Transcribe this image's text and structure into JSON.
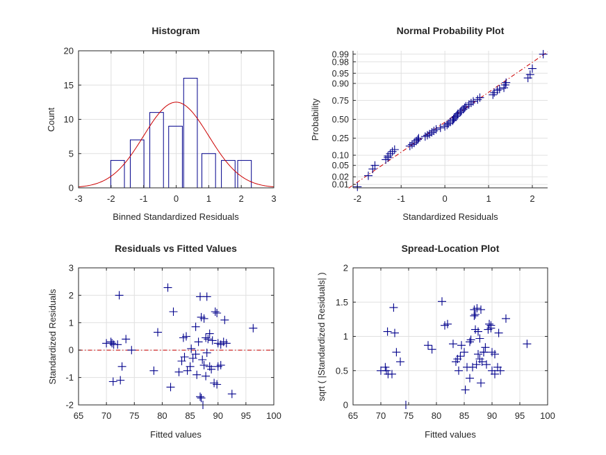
{
  "chart_data": [
    {
      "type": "bar",
      "title": "Histogram",
      "xlabel": "Binned Standardized Residuals",
      "ylabel": "Count",
      "xlim": [
        -3,
        3
      ],
      "ylim": [
        0,
        20
      ],
      "xticks": [
        -3,
        -2,
        -1,
        0,
        1,
        2,
        3
      ],
      "yticks": [
        0,
        5,
        10,
        15,
        20
      ],
      "grid": true,
      "bins": [
        {
          "center": -1.8,
          "value": 4
        },
        {
          "center": -1.2,
          "value": 7
        },
        {
          "center": -0.6,
          "value": 11
        },
        {
          "center": -0.02,
          "value": 9
        },
        {
          "center": 0.44,
          "value": 16
        },
        {
          "center": 1.0,
          "value": 5
        },
        {
          "center": 1.6,
          "value": 4
        },
        {
          "center": 2.1,
          "value": 4
        }
      ],
      "bar_width": 0.42,
      "fit_curve": {
        "mean": 0.0,
        "sd": 1.0,
        "peak": 12.5
      },
      "colors": {
        "bars": "#00008b",
        "curve": "#cc0000"
      }
    },
    {
      "type": "scatter",
      "title": "Normal Probability Plot",
      "xlabel": "Standardized Residuals",
      "ylabel": "Probability",
      "xlim": [
        -2.1,
        2.35
      ],
      "xticks": [
        -2,
        -1,
        0,
        1,
        2
      ],
      "yticks": [
        "0.01",
        "0.02",
        "0.05",
        "0.10",
        "0.25",
        "0.50",
        "0.75",
        "0.90",
        "0.95",
        "0.98",
        "0.99"
      ],
      "ytick_values": [
        0.01,
        0.02,
        0.05,
        0.1,
        0.25,
        0.5,
        0.75,
        0.9,
        0.95,
        0.98,
        0.99
      ],
      "scale": "normal-probability",
      "grid": true,
      "reference_line": {
        "x": [
          -2.2,
          2.35
        ],
        "p": [
          0.007,
          0.992
        ]
      },
      "x": [
        -2.0,
        -1.75,
        -1.65,
        -1.6,
        -1.35,
        -1.3,
        -1.3,
        -1.25,
        -1.2,
        -1.15,
        -0.8,
        -0.75,
        -0.7,
        -0.65,
        -0.62,
        -0.6,
        -0.45,
        -0.4,
        -0.35,
        -0.3,
        -0.25,
        -0.2,
        -0.1,
        0.0,
        0.05,
        0.08,
        0.12,
        0.18,
        0.2,
        0.22,
        0.25,
        0.28,
        0.3,
        0.35,
        0.38,
        0.42,
        0.45,
        0.48,
        0.55,
        0.6,
        0.65,
        0.75,
        0.8,
        1.1,
        1.13,
        1.2,
        1.25,
        1.35,
        1.38,
        1.4,
        1.9,
        1.95,
        2.0,
        2.25
      ],
      "p": [
        0.008,
        0.022,
        0.038,
        0.05,
        0.075,
        0.085,
        0.095,
        0.11,
        0.125,
        0.14,
        0.17,
        0.185,
        0.2,
        0.22,
        0.235,
        0.25,
        0.27,
        0.285,
        0.3,
        0.32,
        0.34,
        0.36,
        0.38,
        0.4,
        0.42,
        0.44,
        0.46,
        0.48,
        0.5,
        0.52,
        0.54,
        0.56,
        0.58,
        0.6,
        0.62,
        0.64,
        0.66,
        0.68,
        0.7,
        0.72,
        0.74,
        0.76,
        0.78,
        0.81,
        0.83,
        0.85,
        0.86,
        0.87,
        0.89,
        0.905,
        0.93,
        0.945,
        0.965,
        0.99
      ],
      "colors": {
        "points": "#00008b",
        "line": "#cc0000"
      }
    },
    {
      "type": "scatter",
      "title": "Residuals vs Fitted Values",
      "xlabel": "Fitted values",
      "ylabel": "Standardized Residuals",
      "xlim": [
        65,
        100
      ],
      "ylim": [
        -2,
        3
      ],
      "xticks": [
        65,
        70,
        75,
        80,
        85,
        90,
        95,
        100
      ],
      "yticks": [
        -2,
        -1,
        0,
        1,
        2,
        3
      ],
      "grid": true,
      "reference_line": {
        "y": 0
      },
      "x": [
        72.3,
        81.0,
        86.8,
        88.0,
        82.0,
        89.5,
        89.8,
        87.0,
        87.5,
        91.2,
        96.3,
        86.0,
        88.5,
        84.3,
        83.8,
        79.2,
        73.5,
        72.0,
        70.0,
        70.8,
        71.0,
        71.3,
        74.5,
        85.2,
        86.5,
        87.8,
        88.2,
        89.0,
        90.0,
        90.5,
        91.0,
        91.5,
        84.0,
        83.5,
        85.5,
        86.0,
        87.2,
        88.0,
        85.0,
        87.5,
        88.5,
        90.0,
        90.5,
        72.8,
        78.5,
        83.0,
        84.5,
        86.2,
        87.8,
        88.8,
        89.3,
        92.5,
        81.5,
        89.8,
        71.2,
        72.5,
        86.8,
        87.0,
        87.3
      ],
      "y": [
        2.0,
        2.28,
        1.95,
        1.95,
        1.4,
        1.4,
        1.35,
        1.2,
        1.15,
        1.1,
        0.8,
        0.85,
        0.6,
        0.5,
        0.45,
        0.65,
        0.4,
        0.2,
        0.25,
        0.3,
        0.25,
        0.2,
        0.0,
        0.05,
        0.3,
        0.45,
        0.4,
        0.35,
        0.25,
        0.2,
        0.3,
        0.25,
        -0.25,
        -0.4,
        -0.3,
        -0.15,
        -0.35,
        -0.1,
        -0.6,
        -0.55,
        -0.6,
        -0.6,
        -0.55,
        -0.6,
        -0.75,
        -0.8,
        -0.75,
        -0.9,
        -0.95,
        -0.7,
        -1.2,
        -1.6,
        -1.35,
        -1.25,
        -1.15,
        -1.1,
        -1.7,
        -1.75,
        -2.0
      ],
      "colors": {
        "points": "#00008b",
        "line": "#cc0000"
      }
    },
    {
      "type": "scatter",
      "title": "Spread-Location Plot",
      "xlabel": "Fitted values",
      "ylabel": "sqrt ( |Standardized Residuals| )",
      "xlim": [
        65,
        100
      ],
      "ylim": [
        0,
        2
      ],
      "xticks": [
        65,
        70,
        75,
        80,
        85,
        90,
        95,
        100
      ],
      "yticks": [
        0,
        0.5,
        1,
        1.5,
        2
      ],
      "ytick_labels": [
        "0",
        "0.5",
        "1",
        "1.5",
        "2"
      ],
      "grid": true,
      "x": [
        72.3,
        81.0,
        86.8,
        88.0,
        82.0,
        89.5,
        89.8,
        87.0,
        87.5,
        91.2,
        96.3,
        86.0,
        88.5,
        84.3,
        83.8,
        79.2,
        73.5,
        72.0,
        70.0,
        70.8,
        71.0,
        71.3,
        74.5,
        85.2,
        86.5,
        87.8,
        88.2,
        89.0,
        90.0,
        90.5,
        91.0,
        91.5,
        84.0,
        83.5,
        85.5,
        86.0,
        87.2,
        88.0,
        85.0,
        87.5,
        88.5,
        90.0,
        90.5,
        72.8,
        78.5,
        83.0,
        84.5,
        86.2,
        87.8,
        88.8,
        89.3,
        92.5,
        81.5,
        89.8,
        71.2,
        72.5,
        86.8,
        87.0,
        87.3
      ],
      "y": [
        1.42,
        1.51,
        1.39,
        1.39,
        1.18,
        1.18,
        1.16,
        1.1,
        1.07,
        1.05,
        0.89,
        0.92,
        0.77,
        0.71,
        0.67,
        0.81,
        0.63,
        0.45,
        0.5,
        0.55,
        0.5,
        0.45,
        0.0,
        0.22,
        0.55,
        0.67,
        0.63,
        0.59,
        0.5,
        0.45,
        0.55,
        0.5,
        0.5,
        0.63,
        0.55,
        0.39,
        0.59,
        0.32,
        0.77,
        0.74,
        0.77,
        0.77,
        0.74,
        0.77,
        0.87,
        0.89,
        0.87,
        0.95,
        0.97,
        0.84,
        1.1,
        1.26,
        1.16,
        1.12,
        1.07,
        1.05,
        1.3,
        1.32,
        1.41
      ],
      "colors": {
        "points": "#00008b"
      }
    }
  ]
}
